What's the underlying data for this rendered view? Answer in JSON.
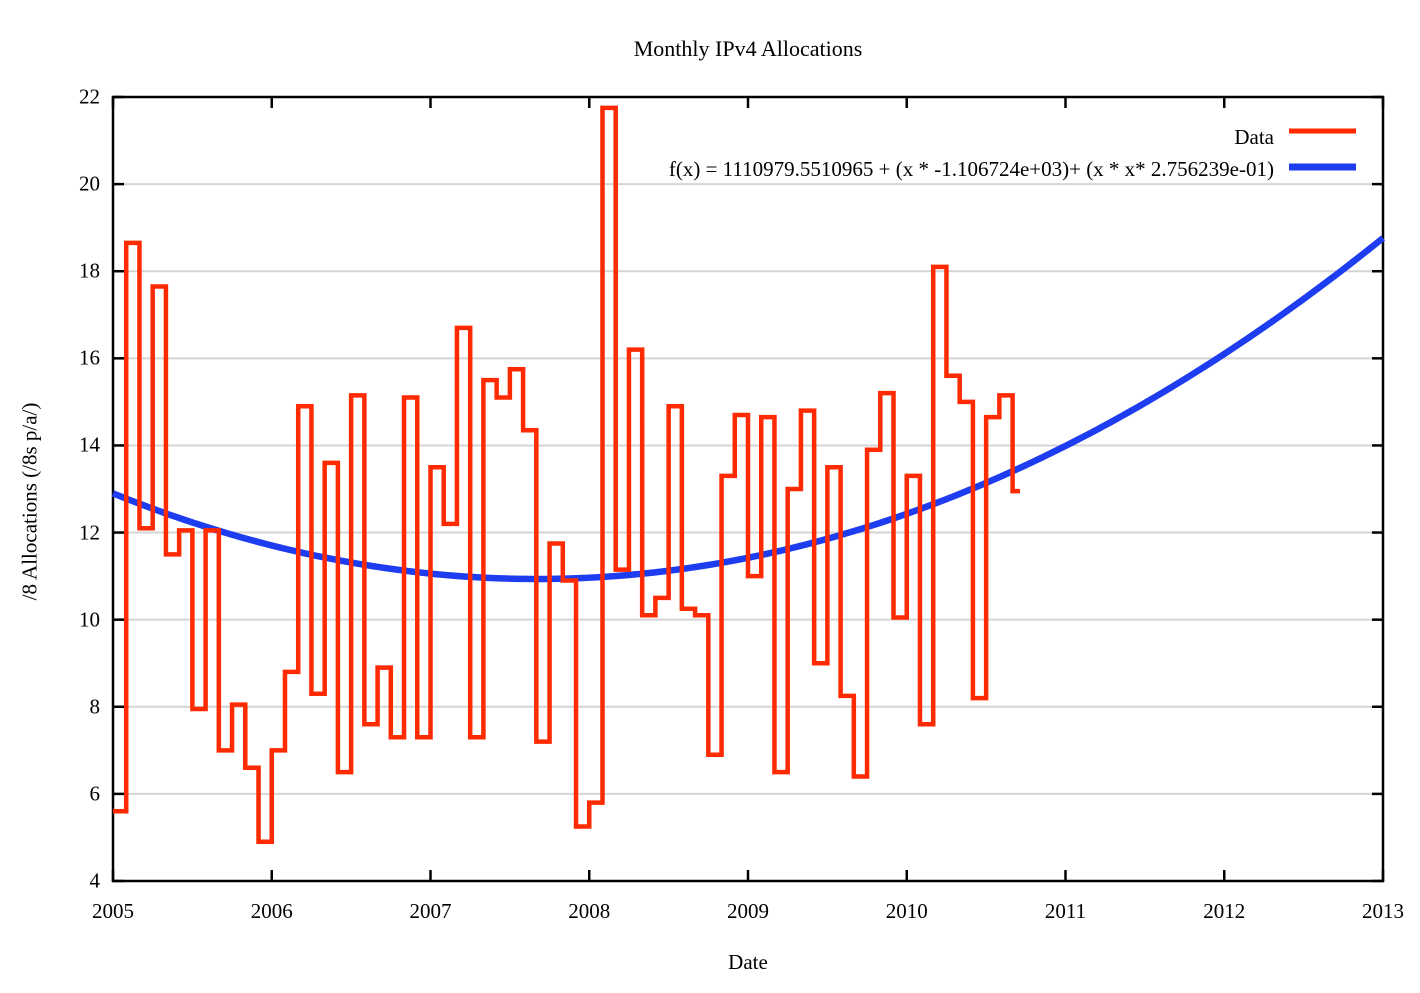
{
  "title": "Monthly IPv4 Allocations",
  "axes": {
    "x_label": "Date",
    "y_label": "/8 Allocations (/8s p/a/)",
    "x_ticks": [
      "2005",
      "2006",
      "2007",
      "2008",
      "2009",
      "2010",
      "2011",
      "2012",
      "2013"
    ],
    "y_ticks": [
      "4",
      "6",
      "8",
      "10",
      "12",
      "14",
      "16",
      "18",
      "20",
      "22"
    ]
  },
  "legend": {
    "data_label": "Data",
    "fit_label": "f(x) = 1110979.5510965 + (x * -1.106724e+03)+ (x * x* 2.756239e-01)"
  },
  "colors": {
    "data_series": "#ff2a00",
    "fit_curve": "#1e3cf0",
    "grid": "#d4d4d4",
    "axis": "#000000",
    "background": "#ffffff"
  },
  "chart_data": {
    "type": "line",
    "title": "Monthly IPv4 Allocations",
    "xlabel": "Date",
    "ylabel": "/8 Allocations (/8s p/a/)",
    "xlim": [
      2005,
      2013
    ],
    "ylim": [
      4,
      22
    ],
    "grid": "horizontal-only",
    "legend_position": "top-right",
    "series": [
      {
        "name": "Data",
        "type": "steps",
        "color": "#ff2a00",
        "x_start_year": 2005.0,
        "x_step": "1 month",
        "x_end_year": 2010.713,
        "values": [
          5.6,
          18.65,
          12.1,
          17.65,
          11.5,
          12.05,
          7.95,
          12.05,
          7.0,
          8.05,
          6.6,
          4.9,
          7.0,
          8.8,
          14.9,
          8.3,
          13.6,
          6.5,
          15.15,
          7.6,
          8.9,
          7.3,
          15.1,
          7.3,
          13.5,
          12.2,
          16.7,
          7.3,
          15.5,
          15.1,
          15.75,
          14.35,
          7.2,
          11.75,
          10.9,
          5.25,
          5.8,
          21.75,
          11.15,
          16.2,
          10.1,
          10.5,
          14.9,
          10.25,
          10.1,
          6.9,
          13.3,
          14.7,
          11.0,
          14.65,
          6.5,
          13.0,
          14.8,
          9.0,
          13.5,
          8.25,
          6.4,
          13.9,
          15.2,
          10.05,
          13.3,
          7.6,
          18.1,
          15.6,
          15.0,
          8.2,
          14.65,
          15.15,
          12.95
        ]
      },
      {
        "name": "f(x) = 1110979.5510965 + (x * -1.106724e+03)+ (x * x* 2.756239e-01)",
        "type": "quadratic_fit",
        "color": "#1e3cf0",
        "coefficients": {
          "c0": 1110979.5510965,
          "c1": -1106.724,
          "c2": 0.2756239
        },
        "x_range": [
          2005,
          2013
        ]
      }
    ]
  }
}
